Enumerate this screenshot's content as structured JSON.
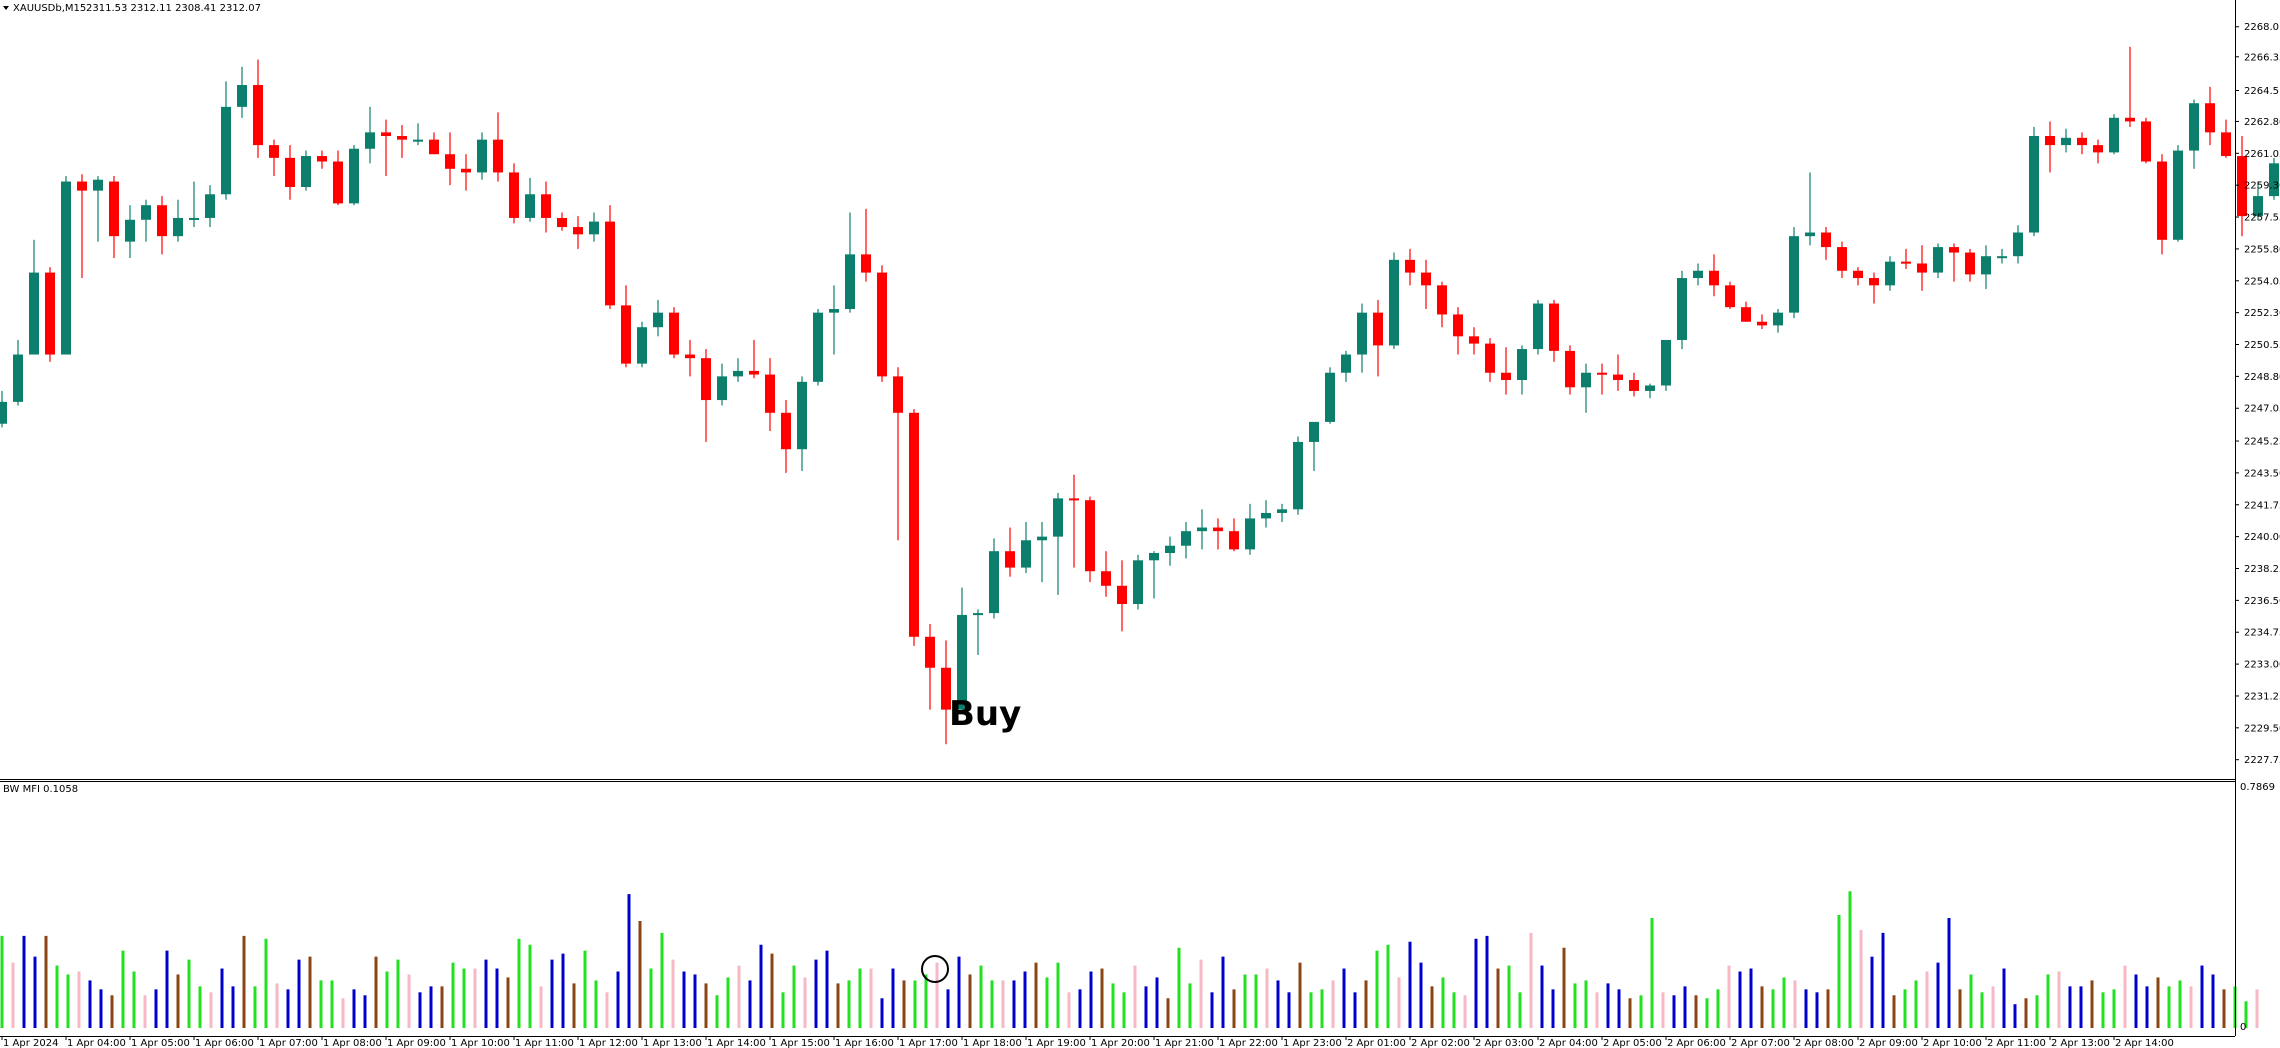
{
  "header": {
    "symbol": "XAUUSDb,M15",
    "ohlc": "2311.53 2312.11 2308.41 2312.07"
  },
  "indicator": {
    "label": "BW MFI 0.1058",
    "max_label": "0.7869",
    "min_label": "0"
  },
  "annotation": {
    "buy_label": "Buy"
  },
  "colors": {
    "bull": "#0b7f6c",
    "bear": "#ff0000",
    "mfi_green": "#22e022",
    "mfi_blue": "#0000cc",
    "mfi_pink": "#f5b8c4",
    "mfi_brown": "#8b4513",
    "axis": "#000000"
  },
  "chart_data": [
    {
      "type": "candlestick",
      "title": "XAUUSDb,M15",
      "ylim": [
        2226.8,
        2268.7
      ],
      "y_ticks": [
        "2268.0",
        "2266.35",
        "2264.5",
        "2262.80",
        "2261.05",
        "2259.30",
        "2257.55",
        "2255.80",
        "2254.05",
        "2252.30",
        "2250.55",
        "2248.80",
        "2247.05",
        "2245.25",
        "2243.50",
        "2241.75",
        "2240.00",
        "2238.25",
        "2236.50",
        "2234.75",
        "2233.00",
        "2231.25",
        "2229.50",
        "2227.75"
      ],
      "x_tick_labels": [
        "1 Apr 2024",
        "1 Apr 04:00",
        "1 Apr 05:00",
        "1 Apr 06:00",
        "1 Apr 07:00",
        "1 Apr 08:00",
        "1 Apr 09:00",
        "1 Apr 10:00",
        "1 Apr 11:00",
        "1 Apr 12:00",
        "1 Apr 13:00",
        "1 Apr 14:00",
        "1 Apr 15:00",
        "1 Apr 16:00",
        "1 Apr 17:00",
        "1 Apr 18:00",
        "1 Apr 19:00",
        "1 Apr 20:00",
        "1 Apr 21:00",
        "1 Apr 22:00",
        "1 Apr 23:00",
        "2 Apr 01:00",
        "2 Apr 02:00",
        "2 Apr 03:00",
        "2 Apr 04:00",
        "2 Apr 05:00",
        "2 Apr 06:00",
        "2 Apr 07:00",
        "2 Apr 08:00",
        "2 Apr 09:00",
        "2 Apr 10:00",
        "2 Apr 11:00",
        "2 Apr 13:00",
        "2 Apr 14:00"
      ],
      "ohlc": [
        [
          2246.2,
          2248.0,
          2246.0,
          2247.4
        ],
        [
          2247.4,
          2250.8,
          2247.2,
          2250.0
        ],
        [
          2250.0,
          2256.3,
          2250.0,
          2254.5
        ],
        [
          2254.5,
          2254.8,
          2249.6,
          2250.0
        ],
        [
          2250.0,
          2259.8,
          2250.0,
          2259.5
        ],
        [
          2259.5,
          2259.9,
          2254.2,
          2259.0
        ],
        [
          2259.0,
          2259.8,
          2256.2,
          2259.6
        ],
        [
          2259.5,
          2259.8,
          2255.3,
          2256.5
        ],
        [
          2256.2,
          2258.2,
          2255.3,
          2257.4
        ],
        [
          2257.4,
          2258.5,
          2256.2,
          2258.2
        ],
        [
          2258.2,
          2258.7,
          2255.5,
          2256.5
        ],
        [
          2256.5,
          2258.5,
          2256.2,
          2257.5
        ],
        [
          2257.5,
          2259.5,
          2257.0,
          2257.5
        ],
        [
          2257.5,
          2259.3,
          2257.0,
          2258.8
        ],
        [
          2258.8,
          2265.0,
          2258.5,
          2263.6
        ],
        [
          2263.6,
          2265.8,
          2263.0,
          2264.8
        ],
        [
          2264.8,
          2266.2,
          2260.8,
          2261.5
        ],
        [
          2261.5,
          2261.8,
          2259.8,
          2260.8
        ],
        [
          2260.8,
          2261.5,
          2258.5,
          2259.2
        ],
        [
          2259.2,
          2261.2,
          2259.0,
          2260.9
        ],
        [
          2260.9,
          2261.2,
          2260.2,
          2260.6
        ],
        [
          2260.6,
          2261.2,
          2258.2,
          2258.3
        ],
        [
          2258.3,
          2261.5,
          2258.2,
          2261.3
        ],
        [
          2261.3,
          2263.6,
          2260.5,
          2262.2
        ],
        [
          2262.2,
          2262.9,
          2259.8,
          2262.0
        ],
        [
          2262.0,
          2262.6,
          2260.8,
          2261.8
        ],
        [
          2261.8,
          2262.7,
          2261.5,
          2261.8
        ],
        [
          2261.8,
          2262.2,
          2261.0,
          2261.0
        ],
        [
          2261.0,
          2262.2,
          2259.3,
          2260.2
        ],
        [
          2260.2,
          2261.0,
          2259.0,
          2260.0
        ],
        [
          2260.0,
          2262.2,
          2259.6,
          2261.8
        ],
        [
          2261.8,
          2263.3,
          2259.5,
          2260.0
        ],
        [
          2260.0,
          2260.5,
          2257.2,
          2257.5
        ],
        [
          2257.5,
          2259.7,
          2257.3,
          2258.8
        ],
        [
          2258.8,
          2259.5,
          2256.7,
          2257.5
        ],
        [
          2257.5,
          2257.8,
          2256.8,
          2257.0
        ],
        [
          2257.0,
          2257.6,
          2255.8,
          2256.6
        ],
        [
          2256.6,
          2257.8,
          2256.2,
          2257.3
        ],
        [
          2257.3,
          2258.2,
          2252.5,
          2252.7
        ],
        [
          2252.7,
          2253.8,
          2249.3,
          2249.5
        ],
        [
          2249.5,
          2251.8,
          2249.3,
          2251.5
        ],
        [
          2251.5,
          2253.0,
          2251.0,
          2252.3
        ],
        [
          2252.3,
          2252.6,
          2249.8,
          2250.0
        ],
        [
          2250.0,
          2250.8,
          2248.8,
          2249.8
        ],
        [
          2249.8,
          2250.3,
          2245.2,
          2247.5
        ],
        [
          2247.5,
          2249.5,
          2247.2,
          2248.8
        ],
        [
          2248.8,
          2249.8,
          2248.5,
          2249.1
        ],
        [
          2249.1,
          2250.8,
          2248.7,
          2248.9
        ],
        [
          2248.9,
          2249.8,
          2245.8,
          2246.8
        ],
        [
          2246.8,
          2247.5,
          2243.5,
          2244.8
        ],
        [
          2244.8,
          2248.8,
          2243.6,
          2248.5
        ],
        [
          2248.5,
          2252.5,
          2248.3,
          2252.3
        ],
        [
          2252.3,
          2253.8,
          2250.0,
          2252.5
        ],
        [
          2252.5,
          2257.8,
          2252.3,
          2255.5
        ],
        [
          2255.5,
          2258.0,
          2254.0,
          2254.5
        ],
        [
          2254.5,
          2254.9,
          2248.5,
          2248.8
        ],
        [
          2248.8,
          2249.3,
          2239.8,
          2246.8
        ],
        [
          2246.8,
          2247.0,
          2234.0,
          2234.5
        ],
        [
          2234.5,
          2235.2,
          2230.5,
          2232.8
        ],
        [
          2232.8,
          2234.3,
          2228.6,
          2230.5
        ],
        [
          2230.5,
          2237.2,
          2230.3,
          2235.7
        ],
        [
          2235.7,
          2236.0,
          2233.5,
          2235.8
        ],
        [
          2235.8,
          2239.9,
          2235.5,
          2239.2
        ],
        [
          2239.2,
          2240.5,
          2237.8,
          2238.3
        ],
        [
          2238.3,
          2240.8,
          2238.0,
          2239.8
        ],
        [
          2239.8,
          2240.8,
          2237.5,
          2240.0
        ],
        [
          2240.0,
          2242.4,
          2236.8,
          2242.1
        ],
        [
          2242.1,
          2243.4,
          2238.3,
          2242.0
        ],
        [
          2242.0,
          2242.2,
          2237.5,
          2238.1
        ],
        [
          2238.1,
          2239.2,
          2236.7,
          2237.3
        ],
        [
          2237.3,
          2238.7,
          2234.8,
          2236.3
        ],
        [
          2236.3,
          2239.0,
          2236.0,
          2238.7
        ],
        [
          2238.7,
          2239.2,
          2236.6,
          2239.1
        ],
        [
          2239.1,
          2240.0,
          2238.4,
          2239.5
        ],
        [
          2239.5,
          2240.8,
          2238.8,
          2240.3
        ],
        [
          2240.3,
          2241.5,
          2239.3,
          2240.5
        ],
        [
          2240.5,
          2241.0,
          2239.3,
          2240.3
        ],
        [
          2240.3,
          2241.0,
          2239.2,
          2239.3
        ],
        [
          2239.3,
          2241.8,
          2239.0,
          2241.0
        ],
        [
          2241.0,
          2242.0,
          2240.5,
          2241.3
        ],
        [
          2241.3,
          2241.8,
          2240.8,
          2241.5
        ],
        [
          2241.5,
          2245.5,
          2241.2,
          2245.2
        ],
        [
          2245.2,
          2246.2,
          2243.6,
          2246.3
        ],
        [
          2246.3,
          2249.3,
          2246.2,
          2249.0
        ],
        [
          2249.0,
          2250.2,
          2248.5,
          2250.0
        ],
        [
          2250.0,
          2252.8,
          2249.0,
          2252.3
        ],
        [
          2252.3,
          2253.0,
          2248.8,
          2250.5
        ],
        [
          2250.5,
          2255.6,
          2250.3,
          2255.2
        ],
        [
          2255.2,
          2255.8,
          2253.8,
          2254.5
        ],
        [
          2254.5,
          2255.2,
          2252.5,
          2253.8
        ],
        [
          2253.8,
          2254.0,
          2251.5,
          2252.2
        ],
        [
          2252.2,
          2252.6,
          2250.0,
          2251.0
        ],
        [
          2251.0,
          2251.5,
          2250.0,
          2250.6
        ],
        [
          2250.6,
          2250.9,
          2248.5,
          2249.0
        ],
        [
          2249.0,
          2250.4,
          2247.8,
          2248.6
        ],
        [
          2248.6,
          2250.5,
          2247.8,
          2250.3
        ],
        [
          2250.3,
          2253.0,
          2250.0,
          2252.8
        ],
        [
          2252.8,
          2253.0,
          2249.6,
          2250.2
        ],
        [
          2250.2,
          2250.5,
          2247.8,
          2248.2
        ],
        [
          2248.2,
          2249.5,
          2246.8,
          2249.0
        ],
        [
          2249.0,
          2249.5,
          2247.8,
          2248.9
        ],
        [
          2248.9,
          2250.0,
          2248.0,
          2248.6
        ],
        [
          2248.6,
          2249.0,
          2247.7,
          2248.0
        ],
        [
          2248.0,
          2248.4,
          2247.6,
          2248.3
        ],
        [
          2248.3,
          2250.8,
          2248.0,
          2250.8
        ],
        [
          2250.8,
          2254.6,
          2250.3,
          2254.2
        ],
        [
          2254.2,
          2255.0,
          2253.8,
          2254.6
        ],
        [
          2254.6,
          2255.5,
          2253.2,
          2253.8
        ],
        [
          2253.8,
          2254.0,
          2252.5,
          2252.6
        ],
        [
          2252.6,
          2252.9,
          2251.8,
          2251.8
        ],
        [
          2251.8,
          2252.2,
          2251.4,
          2251.6
        ],
        [
          2251.6,
          2252.5,
          2251.2,
          2252.3
        ],
        [
          2252.3,
          2257.0,
          2252.0,
          2256.5
        ],
        [
          2256.5,
          2260.0,
          2256.0,
          2256.7
        ],
        [
          2256.7,
          2257.0,
          2255.2,
          2255.9
        ],
        [
          2255.9,
          2256.2,
          2254.2,
          2254.6
        ],
        [
          2254.6,
          2254.8,
          2253.8,
          2254.2
        ],
        [
          2254.2,
          2254.5,
          2252.8,
          2253.8
        ],
        [
          2253.8,
          2255.4,
          2253.5,
          2255.1
        ],
        [
          2255.1,
          2255.8,
          2254.7,
          2255.0
        ],
        [
          2255.0,
          2256.0,
          2253.5,
          2254.5
        ],
        [
          2254.5,
          2256.1,
          2254.2,
          2255.9
        ],
        [
          2255.9,
          2256.1,
          2254.0,
          2255.6
        ],
        [
          2255.6,
          2255.8,
          2254.0,
          2254.4
        ],
        [
          2254.4,
          2256.0,
          2253.6,
          2255.4
        ],
        [
          2255.4,
          2255.8,
          2255.0,
          2255.4
        ],
        [
          2255.4,
          2257.1,
          2255.0,
          2256.7
        ],
        [
          2256.7,
          2262.5,
          2256.5,
          2262.0
        ],
        [
          2262.0,
          2262.8,
          2260.0,
          2261.5
        ],
        [
          2261.5,
          2262.4,
          2261.1,
          2261.9
        ],
        [
          2261.9,
          2262.2,
          2261.0,
          2261.5
        ],
        [
          2261.5,
          2261.8,
          2260.5,
          2261.1
        ],
        [
          2261.1,
          2263.2,
          2261.0,
          2263.0
        ],
        [
          2263.0,
          2266.9,
          2262.5,
          2262.8
        ],
        [
          2262.8,
          2263.0,
          2260.5,
          2260.6
        ],
        [
          2260.6,
          2261.0,
          2255.5,
          2256.3
        ],
        [
          2256.3,
          2261.5,
          2256.2,
          2261.2
        ],
        [
          2261.2,
          2264.0,
          2260.2,
          2263.8
        ],
        [
          2263.8,
          2264.7,
          2261.5,
          2262.2
        ],
        [
          2262.2,
          2262.9,
          2260.8,
          2260.9
        ],
        [
          2260.9,
          2262.0,
          2256.5,
          2257.6
        ],
        [
          2257.6,
          2259.5,
          2257.4,
          2258.7
        ],
        [
          2258.7,
          2260.8,
          2258.5,
          2260.5
        ]
      ]
    },
    {
      "type": "bar",
      "title": "BW MFI 0.1058",
      "ylim": [
        0,
        0.7869
      ],
      "y_ticks": [
        "0.7869",
        "0"
      ],
      "values": [
        0.31,
        0.22,
        0.31,
        0.24,
        0.31,
        0.21,
        0.18,
        0.19,
        0.16,
        0.13,
        0.11,
        0.26,
        0.19,
        0.11,
        0.13,
        0.26,
        0.18,
        0.23,
        0.14,
        0.12,
        0.2,
        0.14,
        0.31,
        0.14,
        0.3,
        0.15,
        0.13,
        0.23,
        0.24,
        0.16,
        0.16,
        0.1,
        0.13,
        0.11,
        0.24,
        0.19,
        0.23,
        0.18,
        0.12,
        0.14,
        0.14,
        0.22,
        0.2,
        0.2,
        0.23,
        0.2,
        0.17,
        0.3,
        0.28,
        0.14,
        0.23,
        0.25,
        0.15,
        0.26,
        0.16,
        0.12,
        0.19,
        0.45,
        0.36,
        0.2,
        0.32,
        0.23,
        0.19,
        0.18,
        0.15,
        0.11,
        0.17,
        0.21,
        0.16,
        0.28,
        0.25,
        0.12,
        0.21,
        0.17,
        0.23,
        0.26,
        0.15,
        0.16,
        0.2,
        0.2,
        0.1,
        0.2,
        0.16,
        0.16,
        0.18,
        0.22,
        0.13,
        0.24,
        0.18,
        0.21,
        0.16,
        0.16,
        0.16,
        0.19,
        0.22,
        0.17,
        0.22,
        0.12,
        0.13,
        0.19,
        0.2,
        0.15,
        0.12,
        0.21,
        0.14,
        0.17,
        0.1,
        0.27,
        0.15,
        0.23,
        0.12,
        0.24,
        0.13,
        0.18,
        0.18,
        0.2,
        0.16,
        0.12,
        0.22,
        0.12,
        0.13,
        0.16,
        0.2,
        0.12,
        0.16,
        0.26,
        0.28,
        0.17,
        0.29,
        0.22,
        0.14,
        0.17,
        0.12,
        0.11,
        0.3,
        0.31,
        0.2,
        0.21,
        0.12,
        0.32,
        0.21,
        0.13,
        0.27,
        0.15,
        0.16,
        0.12,
        0.15,
        0.13,
        0.1,
        0.11,
        0.37,
        0.12,
        0.11,
        0.14,
        0.11,
        0.1,
        0.13,
        0.21,
        0.19,
        0.2,
        0.14,
        0.13,
        0.17,
        0.16,
        0.13,
        0.12,
        0.13,
        0.38,
        0.46,
        0.33,
        0.24,
        0.32,
        0.11,
        0.13,
        0.16,
        0.19,
        0.22,
        0.37,
        0.13,
        0.18,
        0.12,
        0.14,
        0.2,
        0.08,
        0.1,
        0.11,
        0.18,
        0.19,
        0.14,
        0.14,
        0.16,
        0.12,
        0.13,
        0.21,
        0.18,
        0.14,
        0.17,
        0.14,
        0.16,
        0.14,
        0.21,
        0.18,
        0.13,
        0.14,
        0.09,
        0.13
      ],
      "note_colors_legend": [
        "green",
        "blue",
        "pink",
        "brown"
      ]
    }
  ]
}
